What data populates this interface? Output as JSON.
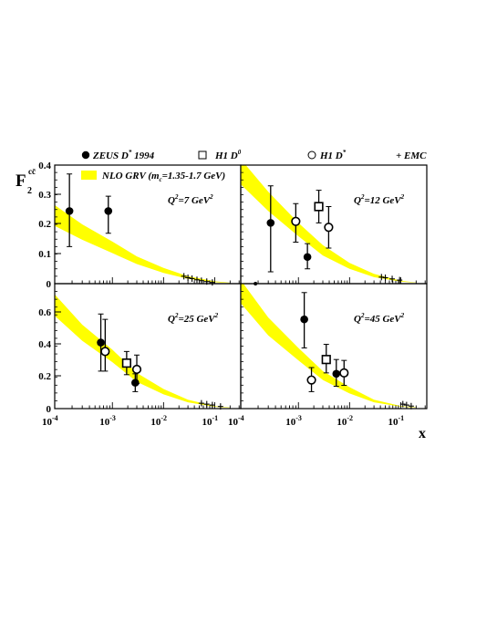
{
  "legend": {
    "zeus": "ZEUS D",
    "zeus_sup": "*",
    "zeus_year": " 1994",
    "h1d0": "H1 D",
    "h1d0_sup": "0",
    "h1ds": "H1 D",
    "h1ds_sup": "*",
    "emc": "+ EMC",
    "band_pre": "NLO GRV (m",
    "band_sub": "c",
    "band_post": "=1.35-1.7 GeV)"
  },
  "colors": {
    "band": "#ffff00",
    "marker": "#000000"
  },
  "y_title": {
    "main": "F",
    "sub": "2",
    "sup": "cc̄"
  },
  "x_title": "x",
  "chart_data": [
    {
      "type": "scatter",
      "label": "Q2=7 GeV2",
      "xscale": "log",
      "xlim": [
        0.0001,
        0.2
      ],
      "ylim": [
        0,
        0.4
      ],
      "yticks": [
        "0",
        "0.1",
        "0.2",
        "0.3",
        "0.4"
      ],
      "band": {
        "x": [
          0.0001,
          0.0003,
          0.001,
          0.003,
          0.01,
          0.03,
          0.1,
          0.2
        ],
        "lo": [
          0.195,
          0.148,
          0.103,
          0.066,
          0.036,
          0.016,
          0.005,
          0.002
        ],
        "hi": [
          0.265,
          0.2,
          0.142,
          0.092,
          0.053,
          0.025,
          0.008,
          0.003
        ]
      },
      "series": [
        {
          "name": "ZEUS D* 1994",
          "marker": "filled-circle",
          "points": [
            {
              "x": 0.00018,
              "y": 0.245,
              "lo": 0.125,
              "hi": 0.37
            },
            {
              "x": 0.00085,
              "y": 0.245,
              "lo": 0.17,
              "hi": 0.295
            }
          ]
        },
        {
          "name": "EMC",
          "marker": "plus",
          "points": [
            {
              "x": 0.025,
              "y": 0.025
            },
            {
              "x": 0.03,
              "y": 0.02
            },
            {
              "x": 0.036,
              "y": 0.017
            },
            {
              "x": 0.045,
              "y": 0.013
            },
            {
              "x": 0.055,
              "y": 0.01
            },
            {
              "x": 0.07,
              "y": 0.007
            },
            {
              "x": 0.09,
              "y": 0.004
            }
          ]
        }
      ]
    },
    {
      "type": "scatter",
      "label": "Q2=12 GeV2",
      "xscale": "log",
      "xlim": [
        0.0001,
        0.2
      ],
      "ylim": [
        0,
        0.4
      ],
      "yticks": [],
      "band": {
        "x": [
          0.0001,
          0.0003,
          0.001,
          0.003,
          0.01,
          0.03,
          0.1,
          0.2
        ],
        "lo": [
          0.335,
          0.245,
          0.16,
          0.095,
          0.05,
          0.022,
          0.007,
          0.003
        ],
        "hi": [
          0.42,
          0.31,
          0.205,
          0.13,
          0.07,
          0.033,
          0.01,
          0.004
        ]
      },
      "series": [
        {
          "name": "ZEUS D* 1994",
          "marker": "filled-circle",
          "points": [
            {
              "x": 0.00033,
              "y": 0.205,
              "lo": 0.04,
              "hi": 0.33
            },
            {
              "x": 0.0015,
              "y": 0.09,
              "lo": 0.05,
              "hi": 0.135
            },
            {
              "x": 0.00018,
              "y": 0.0,
              "small": true
            }
          ]
        },
        {
          "name": "H1 D*",
          "marker": "open-circle",
          "points": [
            {
              "x": 0.0009,
              "y": 0.21,
              "lo": 0.14,
              "hi": 0.27
            },
            {
              "x": 0.0039,
              "y": 0.19,
              "lo": 0.12,
              "hi": 0.26
            }
          ]
        },
        {
          "name": "H1 D0",
          "marker": "open-square",
          "points": [
            {
              "x": 0.0025,
              "y": 0.26,
              "lo": 0.205,
              "hi": 0.315
            }
          ]
        },
        {
          "name": "EMC",
          "marker": "plus",
          "points": [
            {
              "x": 0.042,
              "y": 0.022
            },
            {
              "x": 0.05,
              "y": 0.02
            },
            {
              "x": 0.068,
              "y": 0.016
            },
            {
              "x": 0.095,
              "y": 0.012
            }
          ]
        }
      ]
    },
    {
      "type": "scatter",
      "label": "Q2=25 GeV2",
      "xscale": "log",
      "xlim": [
        0.0001,
        0.2
      ],
      "ylim": [
        0,
        0.7
      ],
      "yticks": [
        "0",
        "0.2",
        "0.4",
        "0.6"
      ],
      "xticks": [
        {
          "b": "10",
          "e": "-4"
        },
        {
          "b": "10",
          "e": "-3"
        },
        {
          "b": "10",
          "e": "-2"
        },
        {
          "b": "10",
          "e": "-1"
        }
      ],
      "band": {
        "x": [
          0.0001,
          0.0003,
          0.001,
          0.003,
          0.01,
          0.03,
          0.1,
          0.2
        ],
        "lo": [
          0.52,
          0.38,
          0.26,
          0.15,
          0.08,
          0.035,
          0.01,
          0.004
        ],
        "hi": [
          0.64,
          0.47,
          0.33,
          0.2,
          0.11,
          0.05,
          0.014,
          0.006
        ]
      },
      "series": [
        {
          "name": "ZEUS D* 1994",
          "marker": "filled-circle",
          "points": [
            {
              "x": 0.00063,
              "y": 0.37,
              "lo": 0.21,
              "hi": 0.53
            },
            {
              "x": 0.0028,
              "y": 0.145,
              "lo": 0.095,
              "hi": 0.195
            }
          ]
        },
        {
          "name": "H1 D*",
          "marker": "open-circle",
          "points": [
            {
              "x": 0.00075,
              "y": 0.32,
              "lo": 0.21,
              "hi": 0.5
            },
            {
              "x": 0.003,
              "y": 0.22,
              "lo": 0.14,
              "hi": 0.3
            }
          ]
        },
        {
          "name": "H1 D0",
          "marker": "open-square",
          "points": [
            {
              "x": 0.0019,
              "y": 0.255,
              "lo": 0.19,
              "hi": 0.32
            }
          ]
        },
        {
          "name": "EMC",
          "marker": "plus",
          "points": [
            {
              "x": 0.055,
              "y": 0.03
            },
            {
              "x": 0.07,
              "y": 0.025
            },
            {
              "x": 0.09,
              "y": 0.02
            },
            {
              "x": 0.13,
              "y": 0.012
            }
          ]
        }
      ]
    },
    {
      "type": "scatter",
      "label": "Q2=45 GeV2",
      "xscale": "log",
      "xlim": [
        0.0001,
        0.2
      ],
      "ylim": [
        0,
        0.7
      ],
      "yticks": [],
      "xticks": [
        {
          "b": "10",
          "e": "-4"
        },
        {
          "b": "10",
          "e": "-3"
        },
        {
          "b": "10",
          "e": "-2"
        },
        {
          "b": "10",
          "e": "-1"
        }
      ],
      "band": {
        "x": [
          0.0001,
          0.0003,
          0.001,
          0.003,
          0.01,
          0.03,
          0.1,
          0.2
        ],
        "lo": [
          0.59,
          0.41,
          0.27,
          0.16,
          0.085,
          0.035,
          0.011,
          0.005
        ],
        "hi": [
          0.72,
          0.51,
          0.34,
          0.21,
          0.12,
          0.05,
          0.015,
          0.007
        ]
      },
      "series": [
        {
          "name": "ZEUS D* 1994",
          "marker": "filled-circle",
          "points": [
            {
              "x": 0.0013,
              "y": 0.5,
              "lo": 0.34,
              "hi": 0.65
            },
            {
              "x": 0.0055,
              "y": 0.195,
              "lo": 0.125,
              "hi": 0.275
            }
          ]
        },
        {
          "name": "H1 D*",
          "marker": "open-circle",
          "points": [
            {
              "x": 0.0018,
              "y": 0.16,
              "lo": 0.095,
              "hi": 0.23
            },
            {
              "x": 0.0078,
              "y": 0.2,
              "lo": 0.13,
              "hi": 0.27
            }
          ]
        },
        {
          "name": "H1 D0",
          "marker": "open-square",
          "points": [
            {
              "x": 0.0035,
              "y": 0.275,
              "lo": 0.2,
              "hi": 0.36
            }
          ]
        },
        {
          "name": "EMC",
          "marker": "plus",
          "points": [
            {
              "x": 0.11,
              "y": 0.025
            },
            {
              "x": 0.13,
              "y": 0.02
            },
            {
              "x": 0.16,
              "y": 0.014
            }
          ]
        }
      ]
    }
  ]
}
